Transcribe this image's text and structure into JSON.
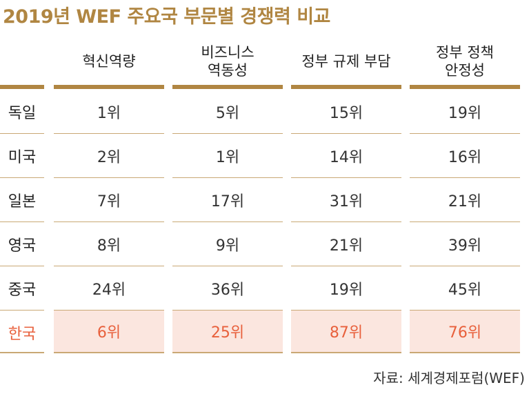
{
  "title": "2019년 WEF 주요국 부문별 경쟁력 비교",
  "source": "자료: 세계경제포럼(WEF)",
  "colors": {
    "accent": "#b08642",
    "highlight_text": "#e8603c",
    "highlight_bg": "#fbe6df"
  },
  "chart_data": {
    "type": "table",
    "columns": [
      "혁신역량",
      "비즈니스\n역동성",
      "정부 규제 부담",
      "정부 정책\n안정성"
    ],
    "rows": [
      {
        "label": "독일",
        "values": [
          "1위",
          "5위",
          "15위",
          "19위"
        ]
      },
      {
        "label": "미국",
        "values": [
          "2위",
          "1위",
          "14위",
          "16위"
        ]
      },
      {
        "label": "일본",
        "values": [
          "7위",
          "17위",
          "31위",
          "21위"
        ]
      },
      {
        "label": "영국",
        "values": [
          "8위",
          "9위",
          "21위",
          "39위"
        ]
      },
      {
        "label": "중국",
        "values": [
          "24위",
          "36위",
          "19위",
          "45위"
        ]
      },
      {
        "label": "한국",
        "values": [
          "6위",
          "25위",
          "87위",
          "76위"
        ],
        "highlight": true
      }
    ]
  }
}
